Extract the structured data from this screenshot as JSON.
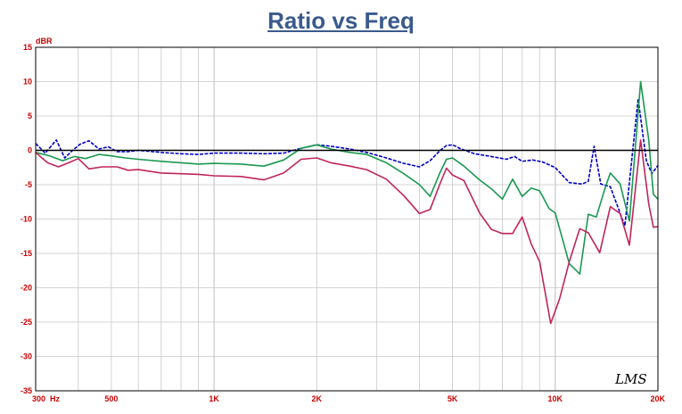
{
  "chart_data": {
    "type": "line",
    "title": "Ratio vs Freq",
    "ylabel": "dBR",
    "xscale": "log",
    "xlim": [
      300,
      20000
    ],
    "ylim": [
      -35,
      15
    ],
    "grid": true,
    "y_ticks": [
      "15",
      "10",
      "5",
      "0",
      "-5",
      "-10",
      "-15",
      "-20",
      "-25",
      "-30",
      "-35"
    ],
    "x_ticks": [
      {
        "value": 300,
        "label": "300"
      },
      {
        "value": 500,
        "label": "500"
      },
      {
        "value": 1000,
        "label": "1K"
      },
      {
        "value": 2000,
        "label": "2K"
      },
      {
        "value": 5000,
        "label": "5K"
      },
      {
        "value": 10000,
        "label": "10K"
      },
      {
        "value": 20000,
        "label": "20K"
      }
    ],
    "x_unit_label": "Hz",
    "logo_text": "LMS",
    "colors": {
      "reference": "#000000",
      "blue": "#0000cc",
      "green": "#1a9850",
      "red": "#c0245c",
      "grid": "#c8c8c8",
      "tick_label": "#cc0000",
      "title": "#3a5a8c"
    },
    "series": [
      {
        "color": "#0000cc",
        "dashed": true,
        "points": [
          [
            300,
            1
          ],
          [
            320,
            -0.4
          ],
          [
            345,
            1.5
          ],
          [
            365,
            -1.1
          ],
          [
            385,
            0
          ],
          [
            405,
            0.9
          ],
          [
            430,
            1.4
          ],
          [
            460,
            0.2
          ],
          [
            490,
            0.5
          ],
          [
            520,
            -0.2
          ],
          [
            560,
            -0.2
          ],
          [
            600,
            0
          ],
          [
            700,
            -0.3
          ],
          [
            800,
            -0.5
          ],
          [
            900,
            -0.6
          ],
          [
            1000,
            -0.4
          ],
          [
            1200,
            -0.4
          ],
          [
            1400,
            -0.5
          ],
          [
            1600,
            -0.4
          ],
          [
            1800,
            0.3
          ],
          [
            2000,
            0.8
          ],
          [
            2200,
            0.6
          ],
          [
            2500,
            0.2
          ],
          [
            2800,
            -0.3
          ],
          [
            3200,
            -1.1
          ],
          [
            3600,
            -1.9
          ],
          [
            4000,
            -2.4
          ],
          [
            4300,
            -1.5
          ],
          [
            4600,
            0
          ],
          [
            4800,
            0.7
          ],
          [
            5000,
            0.8
          ],
          [
            5300,
            0.2
          ],
          [
            5800,
            -0.5
          ],
          [
            6500,
            -0.9
          ],
          [
            7200,
            -1.3
          ],
          [
            7600,
            -0.9
          ],
          [
            8000,
            -1.6
          ],
          [
            8600,
            -1.4
          ],
          [
            9200,
            -1.7
          ],
          [
            10000,
            -2.5
          ],
          [
            11000,
            -4.7
          ],
          [
            12000,
            -4.9
          ],
          [
            12500,
            -4.5
          ],
          [
            13000,
            0.6
          ],
          [
            13600,
            -4.9
          ],
          [
            14500,
            -5.3
          ],
          [
            16000,
            -11
          ],
          [
            17500,
            7.5
          ],
          [
            18500,
            -1.5
          ],
          [
            19200,
            -3.4
          ],
          [
            20000,
            -2.2
          ]
        ]
      },
      {
        "color": "#1a9850",
        "dashed": false,
        "points": [
          [
            300,
            -0.3
          ],
          [
            330,
            -0.8
          ],
          [
            360,
            -1.5
          ],
          [
            390,
            -0.9
          ],
          [
            420,
            -1.2
          ],
          [
            460,
            -0.6
          ],
          [
            500,
            -0.8
          ],
          [
            550,
            -1.1
          ],
          [
            600,
            -1.3
          ],
          [
            700,
            -1.6
          ],
          [
            800,
            -1.8
          ],
          [
            900,
            -2
          ],
          [
            1000,
            -1.9
          ],
          [
            1200,
            -2
          ],
          [
            1400,
            -2.3
          ],
          [
            1600,
            -1.4
          ],
          [
            1800,
            0.3
          ],
          [
            2000,
            0.8
          ],
          [
            2200,
            0.2
          ],
          [
            2500,
            -0.3
          ],
          [
            2800,
            -0.6
          ],
          [
            3200,
            -1.8
          ],
          [
            3600,
            -3.4
          ],
          [
            4000,
            -5
          ],
          [
            4300,
            -6.7
          ],
          [
            4600,
            -3.2
          ],
          [
            4800,
            -1.3
          ],
          [
            5000,
            -1.1
          ],
          [
            5400,
            -2.3
          ],
          [
            6000,
            -4.3
          ],
          [
            6500,
            -5.6
          ],
          [
            7000,
            -7.1
          ],
          [
            7500,
            -4.2
          ],
          [
            8000,
            -6.7
          ],
          [
            8500,
            -5.5
          ],
          [
            9000,
            -5.9
          ],
          [
            9600,
            -8.5
          ],
          [
            10000,
            -9.1
          ],
          [
            11000,
            -16.5
          ],
          [
            11800,
            -18
          ],
          [
            12500,
            -9.3
          ],
          [
            13200,
            -9.7
          ],
          [
            14000,
            -5.5
          ],
          [
            14500,
            -3.3
          ],
          [
            15500,
            -4.9
          ],
          [
            16500,
            -10.3
          ],
          [
            17800,
            10
          ],
          [
            18800,
            1.5
          ],
          [
            19400,
            -6.4
          ],
          [
            20000,
            -7.1
          ]
        ]
      },
      {
        "color": "#c0245c",
        "dashed": false,
        "points": [
          [
            300,
            -0.3
          ],
          [
            325,
            -1.8
          ],
          [
            350,
            -2.4
          ],
          [
            375,
            -1.8
          ],
          [
            400,
            -1.2
          ],
          [
            430,
            -2.7
          ],
          [
            470,
            -2.4
          ],
          [
            520,
            -2.4
          ],
          [
            560,
            -2.9
          ],
          [
            600,
            -2.8
          ],
          [
            700,
            -3.3
          ],
          [
            800,
            -3.4
          ],
          [
            900,
            -3.5
          ],
          [
            1000,
            -3.7
          ],
          [
            1200,
            -3.8
          ],
          [
            1400,
            -4.3
          ],
          [
            1600,
            -3.3
          ],
          [
            1800,
            -1.3
          ],
          [
            2000,
            -1.1
          ],
          [
            2200,
            -1.8
          ],
          [
            2500,
            -2.3
          ],
          [
            2800,
            -2.8
          ],
          [
            3200,
            -4.2
          ],
          [
            3600,
            -6.6
          ],
          [
            4000,
            -9.2
          ],
          [
            4300,
            -8.6
          ],
          [
            4600,
            -4.8
          ],
          [
            4800,
            -2.6
          ],
          [
            5000,
            -3.6
          ],
          [
            5400,
            -4.4
          ],
          [
            6000,
            -9.1
          ],
          [
            6500,
            -11.5
          ],
          [
            7000,
            -12.1
          ],
          [
            7500,
            -12.1
          ],
          [
            8000,
            -9.7
          ],
          [
            8500,
            -13.6
          ],
          [
            9000,
            -16.2
          ],
          [
            9700,
            -25.2
          ],
          [
            10300,
            -21.6
          ],
          [
            11000,
            -16.2
          ],
          [
            11800,
            -11.4
          ],
          [
            12500,
            -12
          ],
          [
            13500,
            -14.9
          ],
          [
            14500,
            -8.2
          ],
          [
            15500,
            -9.2
          ],
          [
            16500,
            -13.8
          ],
          [
            17800,
            1.5
          ],
          [
            18800,
            -7.8
          ],
          [
            19400,
            -11.2
          ],
          [
            20000,
            -11.1
          ]
        ]
      },
      {
        "color": "#000000",
        "dashed": false,
        "reference": true,
        "points": [
          [
            300,
            0
          ],
          [
            20000,
            0
          ]
        ]
      }
    ]
  }
}
